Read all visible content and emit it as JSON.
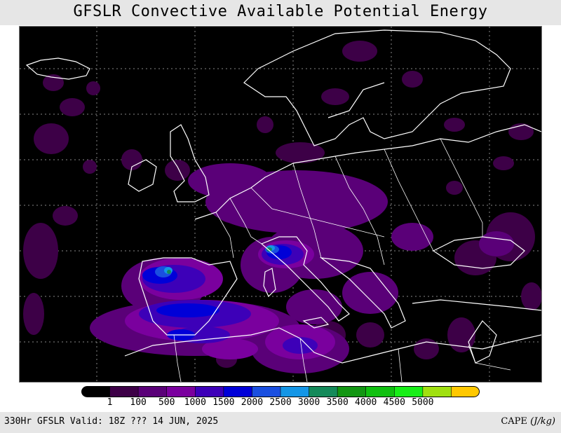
{
  "title": "GFSLR Convective Available Potential Energy",
  "colorbar": {
    "colors": [
      "#000000",
      "#3d0047",
      "#5a0078",
      "#7a009e",
      "#3d00b8",
      "#0000d8",
      "#1a4fe0",
      "#1496e6",
      "#148a5a",
      "#129612",
      "#10c010",
      "#18ee18",
      "#a0e010",
      "#ffc800"
    ],
    "labels": [
      "1",
      "100",
      "500",
      "1000",
      "1500",
      "2000",
      "2500",
      "3000",
      "3500",
      "4000",
      "4500",
      "5000"
    ]
  },
  "footer": {
    "left": "330Hr GFSLR Valid: 18Z ??? 14 JUN, 2025",
    "right_var": "CAPE",
    "right_unit": "(J/kg)"
  },
  "icons": {
    "map": "europe-cape-map",
    "coastline": "coastline-outline"
  }
}
